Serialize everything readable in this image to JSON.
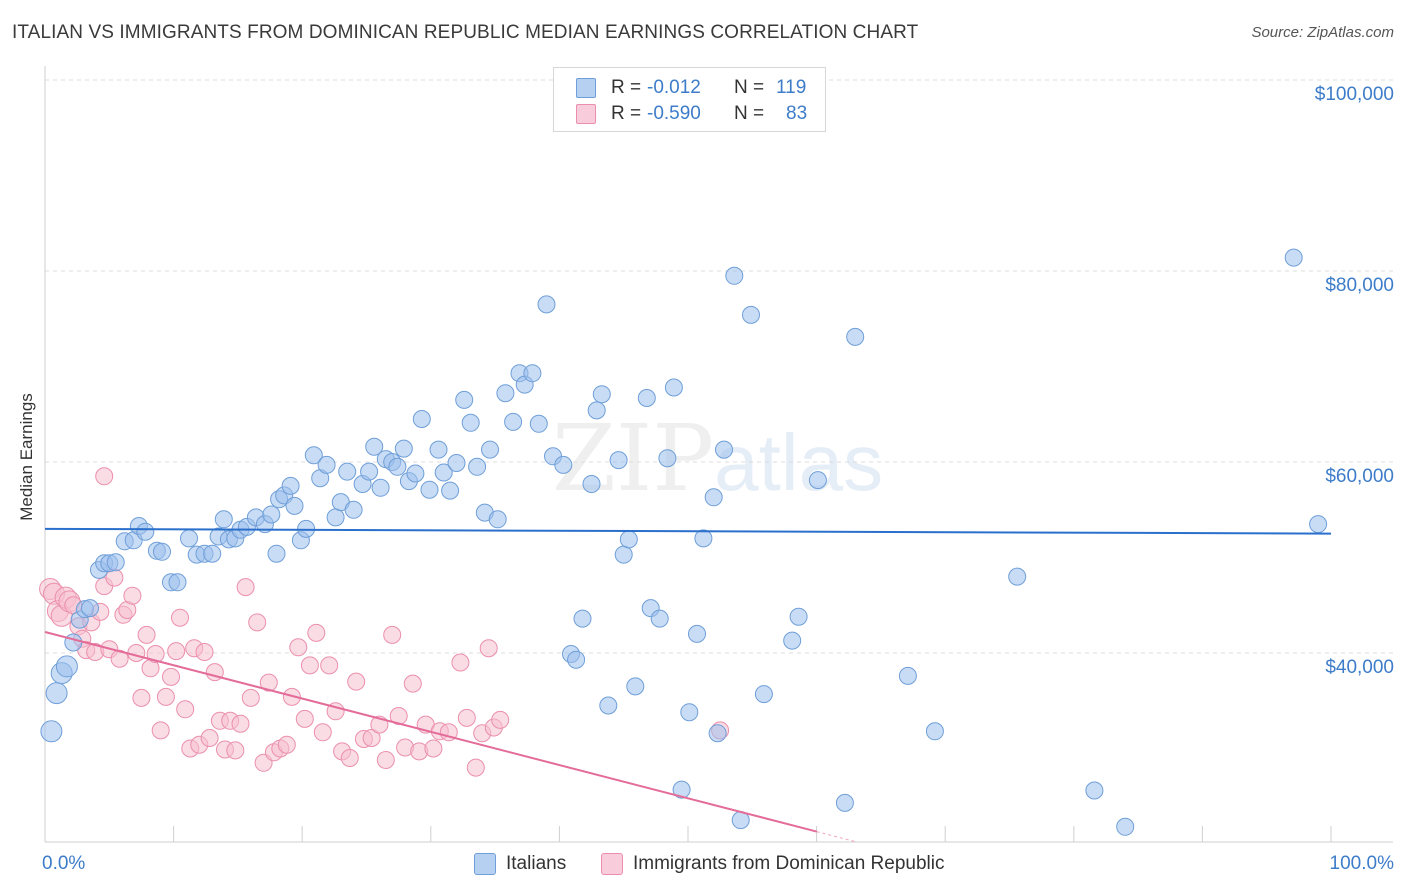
{
  "title": "ITALIAN VS IMMIGRANTS FROM DOMINICAN REPUBLIC MEDIAN EARNINGS CORRELATION CHART",
  "source": "Source: ZipAtlas.com",
  "watermark": {
    "part1": "ZIP",
    "part2": "atlas"
  },
  "stats": {
    "row1": {
      "r_label": "R =",
      "r_value": "-0.012",
      "n_label": "N =",
      "n_value": "119"
    },
    "row2": {
      "r_label": "R =",
      "r_value": "-0.590",
      "n_label": "N =",
      "n_value": "83"
    }
  },
  "legend": {
    "item1": "Italians",
    "item2": "Immigrants from Dominican Republic"
  },
  "colors": {
    "series1_fill": "#9cc0ec",
    "series1_stroke": "#6f9fd8",
    "series1_line": "#2b6fcc",
    "series2_fill": "#f6bfd0",
    "series2_stroke": "#eb8fad",
    "series2_line": "#e36c98",
    "grid": "#dcdcdc",
    "label_blue": "#3d7cc9"
  },
  "chart_data": {
    "type": "scatter",
    "title": "ITALIAN VS IMMIGRANTS FROM DOMINICAN REPUBLIC MEDIAN EARNINGS CORRELATION CHART",
    "xlabel": "",
    "ylabel": "Median Earnings",
    "xlim": [
      0,
      100
    ],
    "ylim": [
      21000,
      102000
    ],
    "x_tick_labels": [
      "0.0%",
      "100.0%"
    ],
    "y_tick_labels": [
      "$40,000",
      "$60,000",
      "$80,000",
      "$100,000"
    ],
    "y_ticks": [
      40000,
      60000,
      80000,
      100000
    ],
    "grid": true,
    "legend_position": "bottom",
    "series": [
      {
        "name": "Italians",
        "trend": {
          "x": [
            0,
            100
          ],
          "y": [
            53000,
            52500
          ]
        },
        "points": [
          [
            0.5,
            31800
          ],
          [
            0.9,
            35800
          ],
          [
            1.3,
            37900
          ],
          [
            1.7,
            38600
          ],
          [
            2.2,
            41100
          ],
          [
            2.7,
            43500
          ],
          [
            3.1,
            44600
          ],
          [
            3.5,
            44700
          ],
          [
            4.2,
            48700
          ],
          [
            4.6,
            49400
          ],
          [
            5.0,
            49400
          ],
          [
            5.5,
            49500
          ],
          [
            6.2,
            51700
          ],
          [
            6.9,
            51800
          ],
          [
            7.3,
            53300
          ],
          [
            7.8,
            52700
          ],
          [
            8.7,
            50700
          ],
          [
            9.1,
            50600
          ],
          [
            9.8,
            47400
          ],
          [
            10.3,
            47400
          ],
          [
            11.2,
            52000
          ],
          [
            11.8,
            50300
          ],
          [
            12.4,
            50400
          ],
          [
            13.0,
            50400
          ],
          [
            13.5,
            52200
          ],
          [
            13.9,
            54000
          ],
          [
            14.3,
            51900
          ],
          [
            14.8,
            52000
          ],
          [
            15.2,
            52900
          ],
          [
            15.7,
            53200
          ],
          [
            16.4,
            54200
          ],
          [
            17.1,
            53500
          ],
          [
            17.6,
            54500
          ],
          [
            18.2,
            56100
          ],
          [
            18.6,
            56500
          ],
          [
            19.1,
            57500
          ],
          [
            19.4,
            55400
          ],
          [
            19.9,
            51800
          ],
          [
            20.3,
            53000
          ],
          [
            20.9,
            60700
          ],
          [
            21.4,
            58300
          ],
          [
            21.9,
            59700
          ],
          [
            22.6,
            54200
          ],
          [
            23.0,
            55800
          ],
          [
            23.5,
            59000
          ],
          [
            24.0,
            55000
          ],
          [
            24.7,
            57700
          ],
          [
            25.2,
            59000
          ],
          [
            25.6,
            61600
          ],
          [
            26.1,
            57300
          ],
          [
            26.5,
            60300
          ],
          [
            27.0,
            60000
          ],
          [
            27.4,
            59500
          ],
          [
            27.9,
            61400
          ],
          [
            28.3,
            58000
          ],
          [
            28.8,
            58800
          ],
          [
            29.3,
            64500
          ],
          [
            29.9,
            57100
          ],
          [
            30.6,
            61300
          ],
          [
            31.0,
            58900
          ],
          [
            31.5,
            57000
          ],
          [
            32.0,
            59900
          ],
          [
            32.6,
            66500
          ],
          [
            33.1,
            64100
          ],
          [
            33.6,
            59500
          ],
          [
            34.2,
            54700
          ],
          [
            34.6,
            61300
          ],
          [
            35.2,
            54000
          ],
          [
            35.8,
            67200
          ],
          [
            36.4,
            64200
          ],
          [
            36.9,
            69300
          ],
          [
            37.3,
            68100
          ],
          [
            37.9,
            69300
          ],
          [
            38.4,
            64000
          ],
          [
            39.0,
            76500
          ],
          [
            39.5,
            60600
          ],
          [
            40.3,
            59700
          ],
          [
            40.9,
            39900
          ],
          [
            41.3,
            39300
          ],
          [
            41.8,
            43600
          ],
          [
            42.5,
            57700
          ],
          [
            42.9,
            65400
          ],
          [
            43.3,
            67100
          ],
          [
            43.8,
            34500
          ],
          [
            44.6,
            60200
          ],
          [
            45.0,
            50300
          ],
          [
            45.4,
            51900
          ],
          [
            45.9,
            36500
          ],
          [
            46.8,
            66700
          ],
          [
            47.1,
            44700
          ],
          [
            47.8,
            43600
          ],
          [
            48.4,
            60400
          ],
          [
            48.9,
            67800
          ],
          [
            49.5,
            25700
          ],
          [
            50.1,
            33800
          ],
          [
            50.7,
            42000
          ],
          [
            51.2,
            52000
          ],
          [
            52.0,
            56300
          ],
          [
            52.3,
            31600
          ],
          [
            52.8,
            61300
          ],
          [
            53.6,
            79500
          ],
          [
            54.1,
            22500
          ],
          [
            54.9,
            75400
          ],
          [
            55.9,
            35700
          ],
          [
            58.1,
            41300
          ],
          [
            58.6,
            43800
          ],
          [
            60.1,
            58100
          ],
          [
            62.2,
            24300
          ],
          [
            63.0,
            73100
          ],
          [
            67.1,
            37600
          ],
          [
            69.2,
            31800
          ],
          [
            75.6,
            48000
          ],
          [
            81.6,
            25600
          ],
          [
            84.0,
            21800
          ],
          [
            97.1,
            81400
          ],
          [
            99.0,
            53500
          ],
          [
            18.0,
            50400
          ]
        ]
      },
      {
        "name": "Immigrants from Dominican Republic",
        "trend": {
          "x": [
            0,
            60
          ],
          "y": [
            42200,
            21300
          ]
        },
        "points": [
          [
            0.4,
            46700
          ],
          [
            0.7,
            46200
          ],
          [
            1.0,
            44400
          ],
          [
            1.3,
            43900
          ],
          [
            1.6,
            45800
          ],
          [
            1.9,
            45400
          ],
          [
            2.2,
            45000
          ],
          [
            2.6,
            42800
          ],
          [
            2.9,
            41500
          ],
          [
            3.2,
            40300
          ],
          [
            3.6,
            43200
          ],
          [
            3.9,
            40100
          ],
          [
            4.3,
            44300
          ],
          [
            4.6,
            47000
          ],
          [
            5.0,
            40400
          ],
          [
            5.4,
            47900
          ],
          [
            5.8,
            39400
          ],
          [
            6.1,
            44000
          ],
          [
            6.4,
            44500
          ],
          [
            6.8,
            46000
          ],
          [
            7.1,
            40000
          ],
          [
            7.5,
            35300
          ],
          [
            7.9,
            41900
          ],
          [
            8.2,
            38400
          ],
          [
            8.6,
            39900
          ],
          [
            9.0,
            31900
          ],
          [
            9.4,
            35400
          ],
          [
            9.8,
            37500
          ],
          [
            10.2,
            40200
          ],
          [
            10.5,
            43700
          ],
          [
            10.9,
            34100
          ],
          [
            11.3,
            30000
          ],
          [
            11.6,
            40500
          ],
          [
            12.0,
            30400
          ],
          [
            12.4,
            40100
          ],
          [
            12.8,
            31100
          ],
          [
            13.2,
            38000
          ],
          [
            13.6,
            32900
          ],
          [
            14.0,
            29900
          ],
          [
            14.4,
            32900
          ],
          [
            14.8,
            29800
          ],
          [
            15.2,
            32600
          ],
          [
            15.6,
            46900
          ],
          [
            16.0,
            35300
          ],
          [
            16.5,
            43200
          ],
          [
            17.0,
            28500
          ],
          [
            17.4,
            36900
          ],
          [
            17.8,
            29600
          ],
          [
            18.3,
            30000
          ],
          [
            18.8,
            30400
          ],
          [
            19.2,
            35400
          ],
          [
            19.7,
            40600
          ],
          [
            20.2,
            33100
          ],
          [
            20.6,
            38700
          ],
          [
            21.1,
            42100
          ],
          [
            21.6,
            31700
          ],
          [
            22.1,
            38700
          ],
          [
            22.6,
            33900
          ],
          [
            23.1,
            29700
          ],
          [
            23.7,
            29000
          ],
          [
            24.2,
            37000
          ],
          [
            24.8,
            31000
          ],
          [
            25.4,
            31100
          ],
          [
            26.0,
            32500
          ],
          [
            26.5,
            28800
          ],
          [
            27.0,
            41900
          ],
          [
            27.5,
            33400
          ],
          [
            28.0,
            30100
          ],
          [
            28.6,
            36800
          ],
          [
            29.1,
            29700
          ],
          [
            29.6,
            32500
          ],
          [
            30.2,
            30000
          ],
          [
            30.7,
            31800
          ],
          [
            31.4,
            31700
          ],
          [
            32.3,
            39000
          ],
          [
            32.8,
            33200
          ],
          [
            33.5,
            28000
          ],
          [
            34.0,
            31600
          ],
          [
            34.5,
            40500
          ],
          [
            34.9,
            32200
          ],
          [
            35.4,
            33000
          ],
          [
            52.5,
            31900
          ],
          [
            4.6,
            58500
          ]
        ]
      }
    ]
  }
}
